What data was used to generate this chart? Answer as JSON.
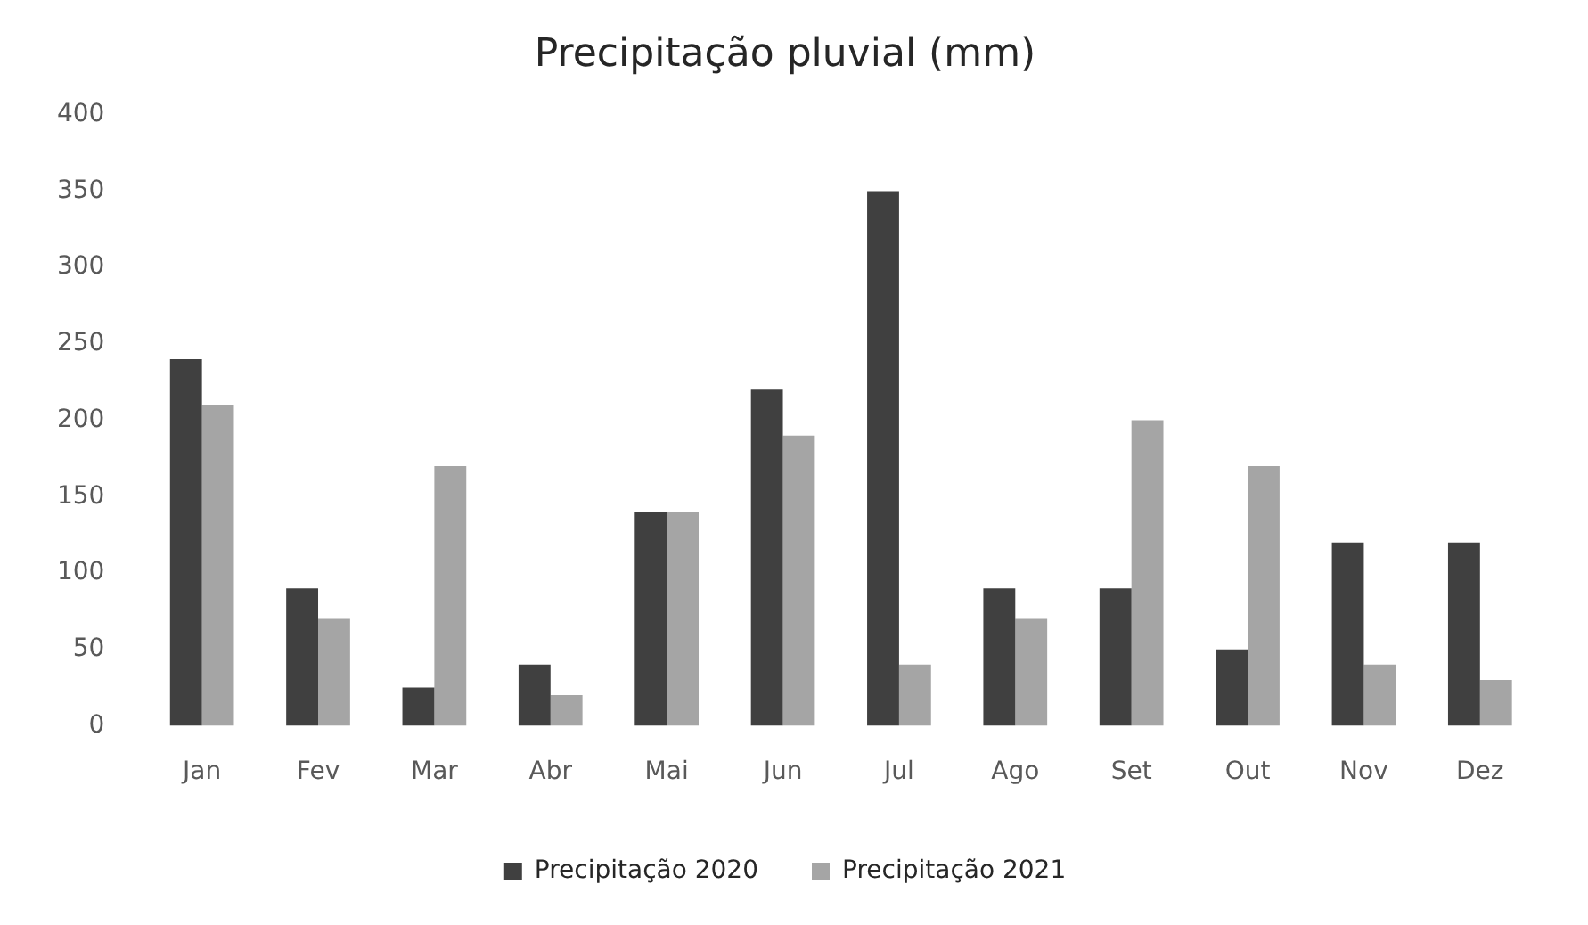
{
  "chart_data": {
    "type": "bar",
    "title": "Precipitação pluvial (mm)",
    "categories": [
      "Jan",
      "Fev",
      "Mar",
      "Abr",
      "Mai",
      "Jun",
      "Jul",
      "Ago",
      "Set",
      "Out",
      "Nov",
      "Dez"
    ],
    "series": [
      {
        "name": "Precipitação 2020",
        "color": "#404040",
        "values": [
          240,
          90,
          25,
          40,
          140,
          220,
          350,
          90,
          90,
          50,
          120,
          120
        ]
      },
      {
        "name": "Precipitação 2021",
        "color": "#a5a5a5",
        "values": [
          210,
          70,
          170,
          20,
          140,
          190,
          40,
          70,
          200,
          170,
          40,
          30
        ]
      }
    ],
    "ylim": [
      0,
      400
    ],
    "yticks": [
      0,
      50,
      100,
      150,
      200,
      250,
      300,
      350,
      400
    ],
    "grid": false,
    "legend": "bottom"
  }
}
